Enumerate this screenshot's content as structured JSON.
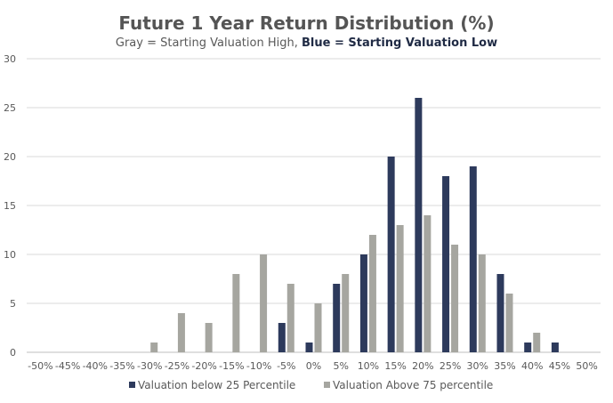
{
  "chart_data": {
    "type": "bar",
    "title": "Future 1 Year Return Distribution (%)",
    "subtitle_part1": "Gray = Starting Valuation High,",
    "subtitle_part2": "Blue = Starting Valuation Low",
    "categories": [
      "-50%",
      "-45%",
      "-40%",
      "-35%",
      "-30%",
      "-25%",
      "-20%",
      "-15%",
      "-10%",
      "-5%",
      "0%",
      "5%",
      "10%",
      "15%",
      "20%",
      "25%",
      "30%",
      "35%",
      "40%",
      "45%",
      "50%"
    ],
    "series": [
      {
        "name": "Valuation below 25 Percentile",
        "color": "#2d3a5c",
        "values": [
          0,
          0,
          0,
          0,
          0,
          0,
          0,
          0,
          0,
          3,
          1,
          7,
          10,
          20,
          26,
          18,
          19,
          8,
          1,
          1,
          0
        ]
      },
      {
        "name": "Valuation Above 75 percentile",
        "color": "#a6a6a0",
        "values": [
          0,
          0,
          0,
          0,
          1,
          4,
          3,
          8,
          10,
          7,
          5,
          8,
          12,
          13,
          14,
          11,
          10,
          6,
          2,
          0,
          0
        ]
      }
    ],
    "ylim": [
      0,
      30
    ],
    "yticks": [
      0,
      5,
      10,
      15,
      20,
      25,
      30
    ],
    "grid": true,
    "legend_position": "bottom",
    "xlabel": "",
    "ylabel": ""
  }
}
